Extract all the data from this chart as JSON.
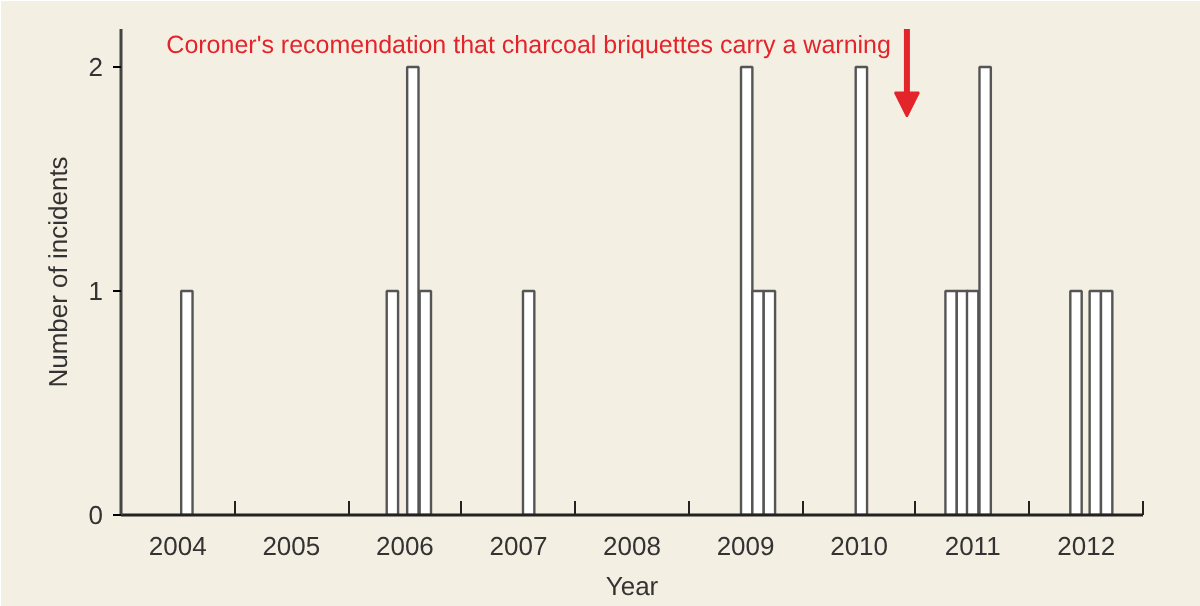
{
  "chart_data": {
    "type": "bar",
    "xlabel": "Year",
    "ylabel": "Number of incidents",
    "x": [
      2004.58,
      2006.39,
      2006.57,
      2006.68,
      2007.59,
      2009.51,
      2009.61,
      2009.71,
      2010.52,
      2011.31,
      2011.41,
      2011.5,
      2011.61,
      2012.41,
      2012.58,
      2012.68
    ],
    "values": [
      1,
      1,
      2,
      1,
      1,
      2,
      1,
      1,
      2,
      1,
      1,
      1,
      2,
      1,
      1,
      1
    ],
    "color": "#ffffff",
    "xlim": [
      2004,
      2013
    ],
    "xticks": [
      {
        "value": 2004.5,
        "label": "2004"
      },
      {
        "value": 2005,
        "label": null
      },
      {
        "value": 2005.5,
        "label": "2005"
      },
      {
        "value": 2006,
        "label": null
      },
      {
        "value": 2006.5,
        "label": "2006"
      },
      {
        "value": 2007,
        "label": null
      },
      {
        "value": 2007.5,
        "label": "2007"
      },
      {
        "value": 2008,
        "label": null
      },
      {
        "value": 2008.5,
        "label": "2008"
      },
      {
        "value": 2009,
        "label": null
      },
      {
        "value": 2009.5,
        "label": "2009"
      },
      {
        "value": 2010,
        "label": null
      },
      {
        "value": 2010.5,
        "label": "2010"
      },
      {
        "value": 2011,
        "label": null
      },
      {
        "value": 2011.5,
        "label": "2011"
      },
      {
        "value": 2012,
        "label": null
      },
      {
        "value": 2012.5,
        "label": "2012"
      },
      {
        "value": 2013,
        "label": null
      }
    ],
    "ylim": [
      0,
      2.17
    ],
    "yticks": [
      0,
      1,
      2
    ],
    "annotations": [
      "Coroner's recomendation that charcoal briquettes carry a warning"
    ],
    "grid": false
  }
}
